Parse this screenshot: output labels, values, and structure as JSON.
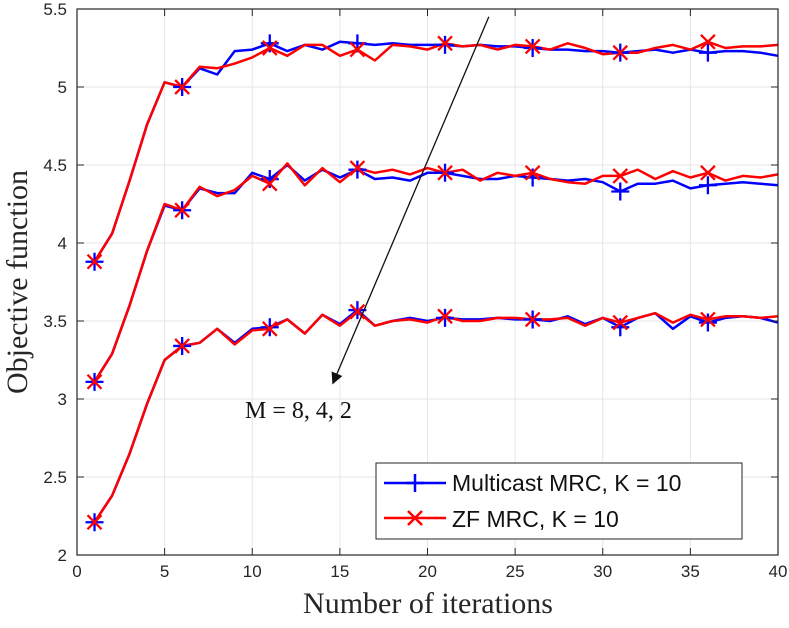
{
  "chart_data": {
    "type": "line",
    "title": "",
    "xlabel": "Number of iterations",
    "ylabel": "Objective function",
    "xlim": [
      0,
      40
    ],
    "ylim": [
      2,
      5.5
    ],
    "xticks": [
      0,
      5,
      10,
      15,
      20,
      25,
      30,
      35,
      40
    ],
    "yticks": [
      2,
      2.5,
      3,
      3.5,
      4,
      4.5,
      5,
      5.5
    ],
    "xtick_labels": [
      "0",
      "5",
      "10",
      "15",
      "20",
      "25",
      "30",
      "35",
      "40"
    ],
    "ytick_labels": [
      "2",
      "2.5",
      "3",
      "3.5",
      "4",
      "4.5",
      "5",
      "5.5"
    ],
    "grid": true,
    "marker_indices": [
      1,
      6,
      11,
      16,
      21,
      26,
      31,
      36
    ],
    "series": [
      {
        "name": "Multicast MRC, K = 10",
        "group": "M = 8",
        "color": "#0000ff",
        "marker": "plus",
        "x": [
          1,
          2,
          3,
          4,
          5,
          6,
          7,
          8,
          9,
          10,
          11,
          12,
          13,
          14,
          15,
          16,
          17,
          18,
          19,
          20,
          21,
          22,
          23,
          24,
          25,
          26,
          27,
          28,
          29,
          30,
          31,
          32,
          33,
          34,
          35,
          36,
          37,
          38,
          39,
          40
        ],
        "y": [
          3.88,
          4.06,
          4.4,
          4.76,
          5.03,
          5.0,
          5.12,
          5.08,
          5.23,
          5.24,
          5.28,
          5.23,
          5.27,
          5.24,
          5.29,
          5.28,
          5.27,
          5.28,
          5.27,
          5.27,
          5.27,
          5.26,
          5.27,
          5.26,
          5.26,
          5.25,
          5.24,
          5.24,
          5.23,
          5.23,
          5.22,
          5.23,
          5.24,
          5.22,
          5.24,
          5.22,
          5.23,
          5.23,
          5.22,
          5.2
        ]
      },
      {
        "name": "ZF MRC, K = 10",
        "group": "M = 8",
        "color": "#ff0000",
        "marker": "cross",
        "x": [
          1,
          2,
          3,
          4,
          5,
          6,
          7,
          8,
          9,
          10,
          11,
          12,
          13,
          14,
          15,
          16,
          17,
          18,
          19,
          20,
          21,
          22,
          23,
          24,
          25,
          26,
          27,
          28,
          29,
          30,
          31,
          32,
          33,
          34,
          35,
          36,
          37,
          38,
          39,
          40
        ],
        "y": [
          3.88,
          4.06,
          4.4,
          4.76,
          5.03,
          5.0,
          5.13,
          5.12,
          5.15,
          5.19,
          5.25,
          5.2,
          5.27,
          5.27,
          5.2,
          5.24,
          5.17,
          5.27,
          5.26,
          5.24,
          5.28,
          5.26,
          5.27,
          5.24,
          5.27,
          5.26,
          5.24,
          5.28,
          5.25,
          5.21,
          5.22,
          5.22,
          5.25,
          5.27,
          5.24,
          5.29,
          5.25,
          5.26,
          5.26,
          5.27
        ]
      },
      {
        "name": "Multicast MRC, K = 10",
        "group": "M = 4",
        "color": "#0000ff",
        "marker": "plus",
        "x": [
          1,
          2,
          3,
          4,
          5,
          6,
          7,
          8,
          9,
          10,
          11,
          12,
          13,
          14,
          15,
          16,
          17,
          18,
          19,
          20,
          21,
          22,
          23,
          24,
          25,
          26,
          27,
          28,
          29,
          30,
          31,
          32,
          33,
          34,
          35,
          36,
          37,
          38,
          39,
          40
        ],
        "y": [
          3.11,
          3.29,
          3.6,
          3.95,
          4.24,
          4.21,
          4.35,
          4.32,
          4.32,
          4.45,
          4.41,
          4.5,
          4.4,
          4.47,
          4.42,
          4.47,
          4.41,
          4.42,
          4.4,
          4.45,
          4.45,
          4.43,
          4.41,
          4.41,
          4.43,
          4.42,
          4.41,
          4.4,
          4.41,
          4.39,
          4.33,
          4.38,
          4.38,
          4.4,
          4.35,
          4.37,
          4.38,
          4.39,
          4.38,
          4.37
        ]
      },
      {
        "name": "ZF MRC, K = 10",
        "group": "M = 4",
        "color": "#ff0000",
        "marker": "cross",
        "x": [
          1,
          2,
          3,
          4,
          5,
          6,
          7,
          8,
          9,
          10,
          11,
          12,
          13,
          14,
          15,
          16,
          17,
          18,
          19,
          20,
          21,
          22,
          23,
          24,
          25,
          26,
          27,
          28,
          29,
          30,
          31,
          32,
          33,
          34,
          35,
          36,
          37,
          38,
          39,
          40
        ],
        "y": [
          3.11,
          3.29,
          3.6,
          3.95,
          4.25,
          4.21,
          4.36,
          4.3,
          4.34,
          4.43,
          4.38,
          4.51,
          4.37,
          4.48,
          4.39,
          4.48,
          4.45,
          4.47,
          4.44,
          4.48,
          4.45,
          4.47,
          4.4,
          4.45,
          4.43,
          4.45,
          4.41,
          4.39,
          4.38,
          4.43,
          4.43,
          4.47,
          4.41,
          4.46,
          4.42,
          4.45,
          4.4,
          4.43,
          4.42,
          4.44
        ]
      },
      {
        "name": "Multicast MRC, K = 10",
        "group": "M = 2",
        "color": "#0000ff",
        "marker": "plus",
        "x": [
          1,
          2,
          3,
          4,
          5,
          6,
          7,
          8,
          9,
          10,
          11,
          12,
          13,
          14,
          15,
          16,
          17,
          18,
          19,
          20,
          21,
          22,
          23,
          24,
          25,
          26,
          27,
          28,
          29,
          30,
          31,
          32,
          33,
          34,
          35,
          36,
          37,
          38,
          39,
          40
        ],
        "y": [
          2.21,
          2.38,
          2.65,
          2.97,
          3.25,
          3.34,
          3.36,
          3.45,
          3.36,
          3.45,
          3.46,
          3.51,
          3.42,
          3.54,
          3.48,
          3.57,
          3.47,
          3.5,
          3.52,
          3.5,
          3.52,
          3.51,
          3.51,
          3.52,
          3.51,
          3.51,
          3.5,
          3.53,
          3.48,
          3.52,
          3.46,
          3.52,
          3.55,
          3.45,
          3.53,
          3.49,
          3.52,
          3.53,
          3.52,
          3.49
        ]
      },
      {
        "name": "ZF MRC, K = 10",
        "group": "M = 2",
        "color": "#ff0000",
        "marker": "cross",
        "x": [
          1,
          2,
          3,
          4,
          5,
          6,
          7,
          8,
          9,
          10,
          11,
          12,
          13,
          14,
          15,
          16,
          17,
          18,
          19,
          20,
          21,
          22,
          23,
          24,
          25,
          26,
          27,
          28,
          29,
          30,
          31,
          32,
          33,
          34,
          35,
          36,
          37,
          38,
          39,
          40
        ],
        "y": [
          2.21,
          2.38,
          2.65,
          2.97,
          3.25,
          3.34,
          3.36,
          3.45,
          3.35,
          3.44,
          3.45,
          3.51,
          3.42,
          3.54,
          3.47,
          3.56,
          3.47,
          3.5,
          3.51,
          3.49,
          3.53,
          3.5,
          3.5,
          3.52,
          3.52,
          3.51,
          3.51,
          3.52,
          3.47,
          3.52,
          3.49,
          3.52,
          3.55,
          3.49,
          3.54,
          3.51,
          3.53,
          3.53,
          3.52,
          3.53
        ]
      }
    ],
    "legend": {
      "location": "bottom-right",
      "entries": [
        {
          "label": "Multicast MRC, K = 10",
          "color": "#0000ff",
          "marker": "plus"
        },
        {
          "label": "ZF MRC, K = 10",
          "color": "#ff0000",
          "marker": "cross"
        }
      ]
    },
    "annotations": [
      {
        "text": "M = 8, 4, 2",
        "type": "arrow",
        "from": [
          23.5,
          5.45
        ],
        "to": [
          14.6,
          3.1
        ]
      }
    ]
  }
}
